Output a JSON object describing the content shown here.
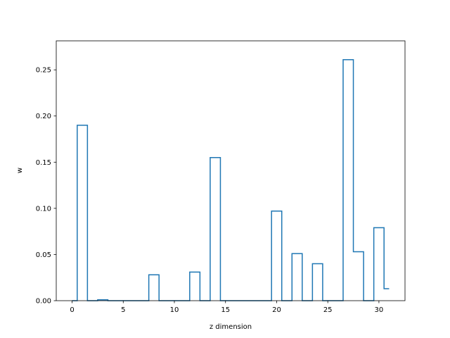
{
  "chart_data": {
    "type": "step",
    "xlabel": "z dimension",
    "ylabel": "w",
    "xlim": [
      -1.55,
      32.55
    ],
    "ylim": [
      0,
      0.2814
    ],
    "x_ticks": [
      0,
      5,
      10,
      15,
      20,
      25,
      30
    ],
    "y_ticks": [
      0.0,
      0.05,
      0.1,
      0.15,
      0.2,
      0.25
    ],
    "x_tick_labels": [
      "0",
      "5",
      "10",
      "15",
      "20",
      "25",
      "30"
    ],
    "y_tick_labels": [
      "0.00",
      "0.05",
      "0.10",
      "0.15",
      "0.20",
      "0.25"
    ],
    "grid": false,
    "series": [
      {
        "color": "#1f77b4",
        "step_where": "mid",
        "x": [
          0,
          1,
          2,
          3,
          4,
          5,
          6,
          7,
          8,
          9,
          10,
          11,
          12,
          13,
          14,
          15,
          16,
          17,
          18,
          19,
          20,
          21,
          22,
          23,
          24,
          25,
          26,
          27,
          28,
          29,
          30,
          31
        ],
        "y": [
          0,
          0.19,
          0,
          0.001,
          0,
          0,
          0,
          0,
          0.028,
          0,
          0,
          0,
          0.031,
          0,
          0.155,
          0,
          0,
          0,
          0,
          0,
          0.097,
          0,
          0.051,
          0,
          0.04,
          0,
          0,
          0.261,
          0.053,
          0,
          0.079,
          0.013
        ]
      }
    ]
  }
}
